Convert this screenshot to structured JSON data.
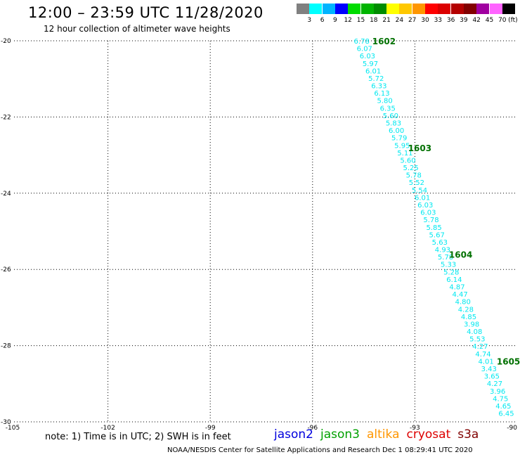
{
  "header": {
    "title": "12:00 – 23:59 UTC 11/28/2020",
    "subtitle": "12 hour collection of altimeter wave heights"
  },
  "color_scale": {
    "unit": "(ft)",
    "bins": [
      {
        "label": "",
        "color": "#808080"
      },
      {
        "label": "3",
        "color": "#00ffff"
      },
      {
        "label": "6",
        "color": "#00b4ff"
      },
      {
        "label": "9",
        "color": "#0000ff"
      },
      {
        "label": "12",
        "color": "#00dc00"
      },
      {
        "label": "15",
        "color": "#00b400"
      },
      {
        "label": "18",
        "color": "#008c00"
      },
      {
        "label": "21",
        "color": "#ffff00"
      },
      {
        "label": "24",
        "color": "#ffc800"
      },
      {
        "label": "27",
        "color": "#ff9600"
      },
      {
        "label": "30",
        "color": "#ff0000"
      },
      {
        "label": "33",
        "color": "#dc0000"
      },
      {
        "label": "36",
        "color": "#b40000"
      },
      {
        "label": "39",
        "color": "#820000"
      },
      {
        "label": "42",
        "color": "#a000a0"
      },
      {
        "label": "45",
        "color": "#ff64ff"
      },
      {
        "label": "70",
        "color": "#000000"
      }
    ]
  },
  "chart_data": {
    "type": "scatter",
    "xlim": [
      -105,
      -90
    ],
    "ylim": [
      -30,
      -20
    ],
    "x_ticks": [
      -105,
      -102,
      -99,
      -96,
      -93,
      -90
    ],
    "y_ticks": [
      -20,
      -22,
      -24,
      -26,
      -28,
      -30
    ],
    "grid": true,
    "point_color": "#00e8f0",
    "time_label_color": "#007000",
    "track": {
      "start": [
        -94.56,
        -20.0
      ],
      "end": [
        -90.32,
        -29.77
      ],
      "swh_ft": [
        "6.78",
        "6.07",
        "6.03",
        "5.97",
        "6.01",
        "5.72",
        "6.33",
        "6.13",
        "5.80",
        "6.35",
        "5.60",
        "5.83",
        "6.00",
        "5.79",
        "5.95",
        "5.11",
        "5.60",
        "5.25",
        "5.78",
        "5.52",
        "5.54",
        "6.01",
        "6.03",
        "6.03",
        "5.78",
        "5.85",
        "5.67",
        "5.63",
        "4.93",
        "5.78",
        "5.33",
        "5.28",
        "6.14",
        "4.87",
        "4.47",
        "4.80",
        "4.28",
        "4.85",
        "3.98",
        "4.08",
        "5.53",
        "4.27",
        "4.74",
        "4.01",
        "3.43",
        "3.65",
        "4.27",
        "3.96",
        "4.75",
        "4.65",
        "6.45"
      ]
    },
    "time_labels": [
      {
        "text": "1602",
        "x": -94.25,
        "y": -20.0
      },
      {
        "text": "1603",
        "x": -93.2,
        "y": -22.8
      },
      {
        "text": "1604",
        "x": -92.0,
        "y": -25.6
      },
      {
        "text": "1605",
        "x": -90.6,
        "y": -28.4
      }
    ]
  },
  "footer": {
    "note": "note: 1) Time is in UTC; 2) SWH is in feet",
    "satellites": [
      {
        "name": "jason2",
        "color": "#0000dd"
      },
      {
        "name": "jason3",
        "color": "#00a000"
      },
      {
        "name": "altika",
        "color": "#ff9600"
      },
      {
        "name": "cryosat",
        "color": "#dd0000"
      },
      {
        "name": "s3a",
        "color": "#800000"
      }
    ],
    "credit": "NOAA/NESDIS Center for Satellite Applications and Research     Dec  1 08:29:41 UTC 2020"
  }
}
